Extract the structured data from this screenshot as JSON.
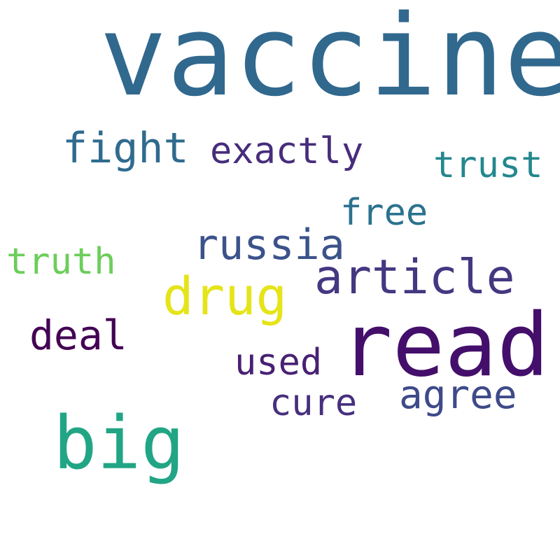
{
  "words": {
    "vaccine": {
      "text": "vaccine",
      "color": "#31688e"
    },
    "read": {
      "text": "read",
      "color": "#440f6b"
    },
    "big": {
      "text": "big",
      "color": "#21a585"
    },
    "drug": {
      "text": "drug",
      "color": "#e5e419"
    },
    "article": {
      "text": "article",
      "color": "#453781"
    },
    "fight": {
      "text": "fight",
      "color": "#2f6b8e"
    },
    "russia": {
      "text": "russia",
      "color": "#3b528b"
    },
    "deal": {
      "text": "deal",
      "color": "#440154"
    },
    "agree": {
      "text": "agree",
      "color": "#3e4a89"
    },
    "exactly": {
      "text": "exactly",
      "color": "#472d7b"
    },
    "free": {
      "text": "free",
      "color": "#2c728e"
    },
    "trust": {
      "text": "trust",
      "color": "#24878e"
    },
    "truth": {
      "text": "truth",
      "color": "#6ccd5a"
    },
    "used": {
      "text": "used",
      "color": "#482173"
    },
    "cure": {
      "text": "cure",
      "color": "#472f7d"
    }
  }
}
